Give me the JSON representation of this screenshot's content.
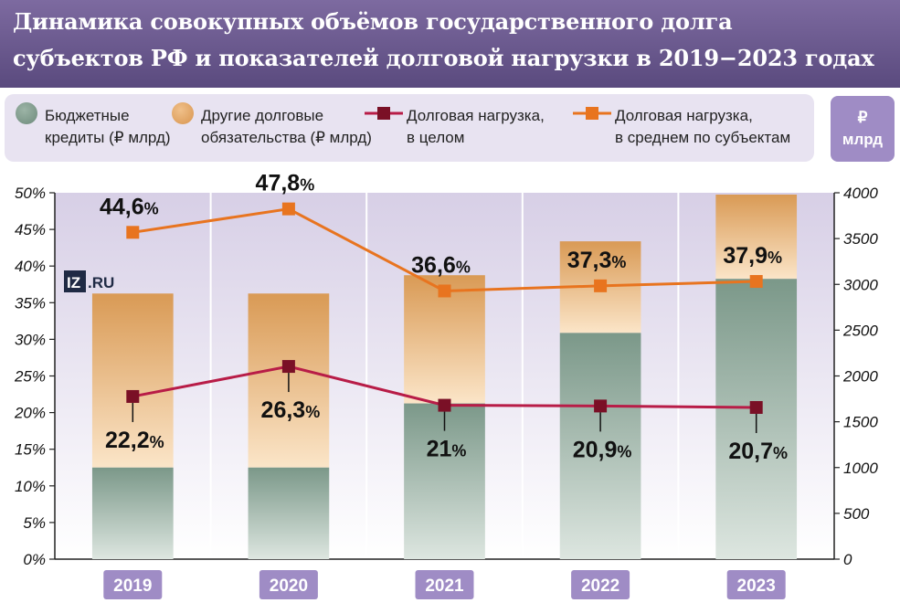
{
  "title": {
    "line1": "Динамика совокупных объёмов государственного долга",
    "line2": "субъектов РФ и показателей долговой нагрузки в 2019−2023 годах"
  },
  "legend": {
    "budget_credits": {
      "line1": "Бюджетные",
      "line2": "кредиты (₽ млрд)"
    },
    "other_debt": {
      "line1": "Другие долговые",
      "line2": "обязательства (₽ млрд)"
    },
    "load_total": {
      "line1": "Долговая нагрузка,",
      "line2": "в целом"
    },
    "load_avg": {
      "line1": "Долговая нагрузка,",
      "line2": "в среднем по субъектам"
    }
  },
  "unit_badge": {
    "line1": "₽",
    "line2": "млрд"
  },
  "watermark": "IZ.RU",
  "colors": {
    "title_bg": "#6b5a8e",
    "legend_bg": "#e8e3f1",
    "plot_bg": "#ddd5ea",
    "budget_credits": "#7f9a8c",
    "other_debt": "#e1a566",
    "load_total": "#b81c47",
    "load_avg": "#e8741f",
    "year_badge": "#9f8cc5"
  },
  "chart_data": {
    "type": "bar",
    "categories": [
      "2019",
      "2020",
      "2021",
      "2022",
      "2023"
    ],
    "stacked": true,
    "y_left": {
      "ticks": [
        "0%",
        "5%",
        "10%",
        "15%",
        "20%",
        "25%",
        "30%",
        "35%",
        "40%",
        "45%",
        "50%"
      ],
      "ylim": [
        0,
        50
      ]
    },
    "y_right": {
      "ticks": [
        "0",
        "500",
        "1000",
        "1500",
        "2000",
        "2500",
        "3000",
        "3500",
        "4000"
      ],
      "ylim": [
        0,
        4000
      ]
    },
    "series": [
      {
        "name": "Бюджетные кредиты (₽ млрд)",
        "kind": "bar",
        "axis": "right",
        "values": [
          1000,
          1000,
          1700,
          2470,
          3060
        ]
      },
      {
        "name": "Другие долговые обязательства (₽ млрд)",
        "kind": "bar",
        "axis": "right",
        "values": [
          1900,
          1900,
          1400,
          1000,
          920
        ]
      },
      {
        "name": "Долговая нагрузка, в целом",
        "kind": "line",
        "axis": "left",
        "values": [
          22.2,
          26.3,
          21,
          20.9,
          20.7
        ],
        "labels": [
          "22,2",
          "26,3",
          "21",
          "20,9",
          "20,7"
        ]
      },
      {
        "name": "Долговая нагрузка, в среднем по субъектам",
        "kind": "line",
        "axis": "left",
        "values": [
          44.6,
          47.8,
          36.6,
          37.3,
          37.9
        ],
        "labels": [
          "44,6",
          "47,8",
          "36,6",
          "37,3",
          "37,9"
        ]
      }
    ],
    "percent_sign": "%",
    "grid": true
  }
}
